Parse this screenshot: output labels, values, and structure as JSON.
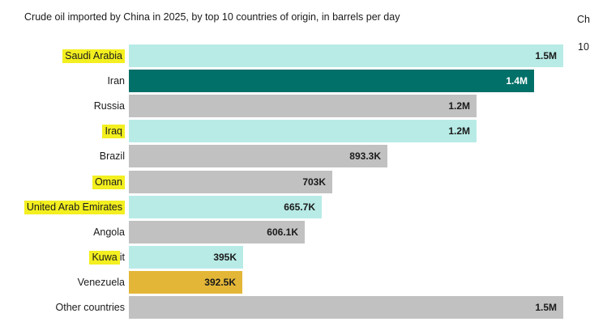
{
  "title": "Crude oil imported by China in 2025, by top 10 countries of origin, in barrels per day",
  "clipped_right_panel": {
    "line1": "Ch",
    "line2": "10"
  },
  "colors": {
    "teal_light": "#b8ebe6",
    "teal_dark": "#007069",
    "gray": "#c1c1c1",
    "gold": "#e3b637",
    "highlight_yellow": "#f3ef20",
    "value_text_dark": "#1a1a1a",
    "value_text_light": "#ffffff",
    "background": "#ffffff"
  },
  "chart_data": {
    "type": "bar",
    "orientation": "horizontal",
    "title": "Crude oil imported by China in 2025, by top 10 countries of origin, in barrels per day",
    "unit": "barrels per day",
    "grid": false,
    "legend": false,
    "max_value": 1500000,
    "categories": [
      "Saudi Arabia",
      "Iran",
      "Russia",
      "Iraq",
      "Brazil",
      "Oman",
      "United Arab Emirates",
      "Angola",
      "Kuwait",
      "Venezuela",
      "Other countries"
    ],
    "values": [
      1500000,
      1400000,
      1200000,
      1200000,
      893300,
      703000,
      665700,
      606100,
      395000,
      392500,
      1500000
    ],
    "value_labels": [
      "1.5M",
      "1.4M",
      "1.2M",
      "1.2M",
      "893.3K",
      "703K",
      "665.7K",
      "606.1K",
      "395K",
      "392.5K",
      "1.5M"
    ],
    "bar_colors": [
      "teal_light",
      "teal_dark",
      "gray",
      "teal_light",
      "gray",
      "gray",
      "teal_light",
      "gray",
      "teal_light",
      "gold",
      "gray"
    ],
    "value_text_colors": [
      "value_text_dark",
      "value_text_light",
      "value_text_dark",
      "value_text_dark",
      "value_text_dark",
      "value_text_dark",
      "value_text_dark",
      "value_text_dark",
      "value_text_dark",
      "value_text_dark",
      "value_text_dark"
    ],
    "highlighted_label_parts": [
      "Saudi Arabia",
      "",
      "",
      "Iraq",
      "",
      "Oman",
      "United Arab Emirates",
      "",
      "Kuwa",
      "",
      ""
    ]
  }
}
